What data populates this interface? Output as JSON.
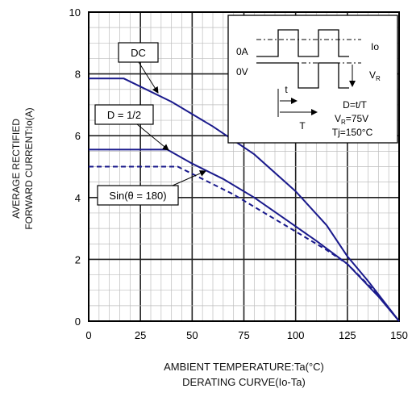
{
  "chart_data": {
    "type": "line",
    "title": "DERATING CURVE(Io-Ta)",
    "xlabel": "AMBIENT TEMPERATURE:Ta(°C)",
    "ylabel_line1": "AVERAGE RECTIFIED",
    "ylabel_line2": "FORWARD CURRENT:Io(A)",
    "xlim": [
      0,
      150
    ],
    "ylim": [
      0,
      10
    ],
    "x_ticks": [
      "0",
      "25",
      "50",
      "75",
      "100",
      "125",
      "150"
    ],
    "y_ticks": [
      "0",
      "2",
      "4",
      "6",
      "8",
      "10"
    ],
    "grid": true,
    "series": [
      {
        "name": "DC",
        "style": "solid",
        "color": "#1a1a8c",
        "points": [
          [
            0,
            7.85
          ],
          [
            17,
            7.85
          ],
          [
            40,
            7.1
          ],
          [
            60,
            6.3
          ],
          [
            80,
            5.4
          ],
          [
            100,
            4.2
          ],
          [
            115,
            3.1
          ],
          [
            125,
            2.1
          ],
          [
            135,
            1.3
          ],
          [
            150,
            0
          ]
        ]
      },
      {
        "name": "D = 1/2",
        "style": "solid",
        "color": "#1a1a8c",
        "points": [
          [
            0,
            5.55
          ],
          [
            38,
            5.55
          ],
          [
            50,
            5.1
          ],
          [
            65,
            4.6
          ],
          [
            80,
            4.0
          ],
          [
            95,
            3.3
          ],
          [
            110,
            2.6
          ],
          [
            125,
            1.85
          ],
          [
            140,
            0.8
          ],
          [
            150,
            0
          ]
        ]
      },
      {
        "name": "Sin(θ = 180)",
        "style": "dashed",
        "color": "#1a1a8c",
        "points": [
          [
            0,
            5.0
          ],
          [
            43,
            5.0
          ],
          [
            55,
            4.6
          ],
          [
            70,
            4.1
          ],
          [
            85,
            3.5
          ],
          [
            100,
            2.9
          ],
          [
            115,
            2.3
          ],
          [
            125,
            1.85
          ],
          [
            140,
            0.85
          ],
          [
            150,
            0
          ]
        ]
      }
    ],
    "inset": {
      "label_0A": "0A",
      "label_0V": "0V",
      "label_Io": "Io",
      "label_VR": "V",
      "label_VR_sub": "R",
      "label_t": "t",
      "label_T": "T",
      "label_D": "D=t/T",
      "label_vr_eq_v": "V",
      "label_vr_eq_sub": "R",
      "label_vr_eq_val": "=75V",
      "label_Tj": "Tj=150°C"
    }
  }
}
